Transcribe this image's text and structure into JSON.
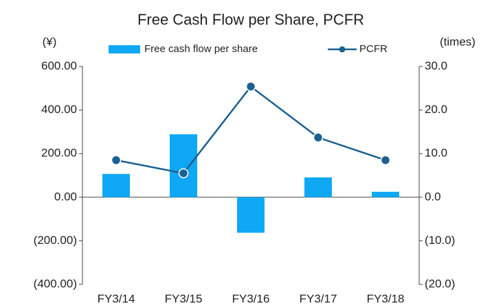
{
  "chart_data": {
    "type": "bar_line",
    "title": "Free Cash Flow per Share, PCFR",
    "y_label": "(¥)",
    "y2_label": "(times)",
    "categories": [
      "FY3/14",
      "FY3/15",
      "FY3/16",
      "FY3/17",
      "FY3/18"
    ],
    "series": [
      {
        "name": "Free cash flow per share",
        "type": "bar",
        "color": "#0fa8f5",
        "axis": "y",
        "values": [
          107,
          289,
          -163,
          91,
          25
        ]
      },
      {
        "name": "PCFR",
        "type": "line",
        "color": "#1a6090",
        "axis": "y2",
        "values": [
          8.5,
          5.5,
          25.4,
          13.7,
          8.5
        ]
      }
    ],
    "ylim": [
      -400,
      600
    ],
    "yticks": [
      {
        "value": -400,
        "label": "(400.00)"
      },
      {
        "value": -200,
        "label": "(200.00)"
      },
      {
        "value": 0,
        "label": "0.00"
      },
      {
        "value": 200,
        "label": "200.00"
      },
      {
        "value": 400,
        "label": "400.00"
      },
      {
        "value": 600,
        "label": "600.00"
      }
    ],
    "y2lim": [
      -20,
      30
    ],
    "y2ticks": [
      {
        "value": -20,
        "label": "(20.0)"
      },
      {
        "value": -10,
        "label": "(10.0)"
      },
      {
        "value": 0,
        "label": "0.0"
      },
      {
        "value": 10,
        "label": "10.0"
      },
      {
        "value": 20,
        "label": "20.0"
      },
      {
        "value": 30,
        "label": "30.0"
      }
    ],
    "grid": false
  }
}
